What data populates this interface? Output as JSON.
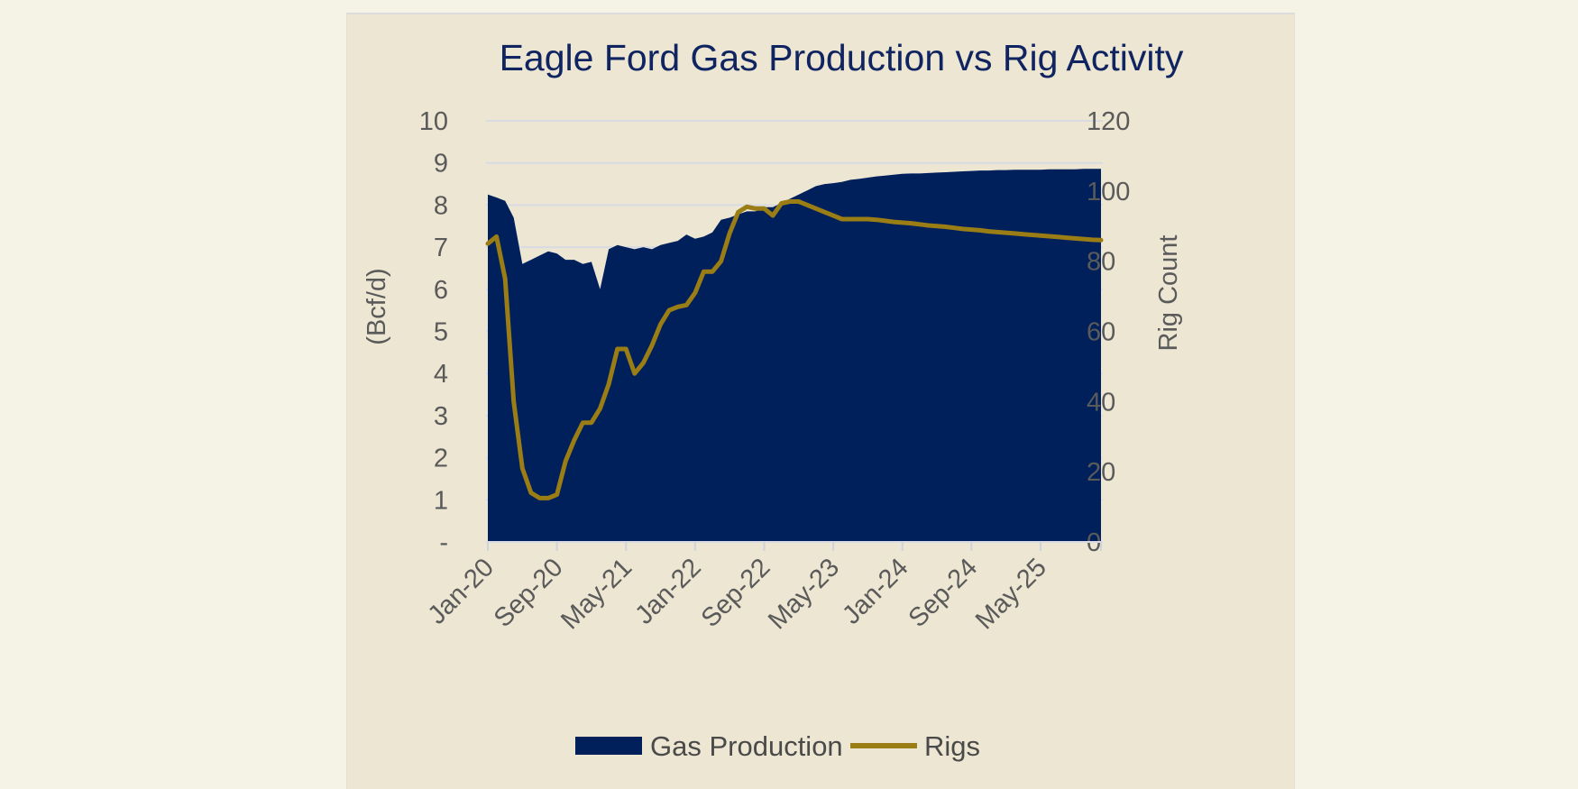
{
  "chart_data": {
    "type": "area",
    "title": "Eagle Ford Gas Production vs Rig Activity",
    "x_labels": [
      "Jan-20",
      "Sep-20",
      "May-21",
      "Jan-22",
      "Sep-22",
      "May-23",
      "Jan-24",
      "Sep-24",
      "May-25"
    ],
    "y_left": {
      "label": "(Bcf/d)",
      "ylim": [
        0,
        10
      ],
      "ticks": [
        "-",
        "1",
        "2",
        "3",
        "4",
        "5",
        "6",
        "7",
        "8",
        "9",
        "10"
      ]
    },
    "y_right": {
      "label": "Rig Count",
      "ylim": [
        0,
        120
      ],
      "ticks": [
        "0",
        "20",
        "40",
        "60",
        "80",
        "100",
        "120"
      ]
    },
    "gridlines": true,
    "legend_position": "bottom",
    "series": [
      {
        "name": "Gas Production",
        "type": "area",
        "axis": "left",
        "color": "#00205b",
        "x": [
          "2020-01",
          "2020-02",
          "2020-03",
          "2020-04",
          "2020-05",
          "2020-06",
          "2020-07",
          "2020-08",
          "2020-09",
          "2020-10",
          "2020-11",
          "2020-12",
          "2021-01",
          "2021-02",
          "2021-03",
          "2021-04",
          "2021-05",
          "2021-06",
          "2021-07",
          "2021-08",
          "2021-09",
          "2021-10",
          "2021-11",
          "2021-12",
          "2022-01",
          "2022-02",
          "2022-03",
          "2022-04",
          "2022-05",
          "2022-06",
          "2022-07",
          "2022-08",
          "2022-09",
          "2022-10",
          "2022-11",
          "2022-12",
          "2023-01",
          "2023-02",
          "2023-03",
          "2023-04",
          "2023-05",
          "2023-06",
          "2023-07",
          "2023-08",
          "2023-09",
          "2023-10",
          "2023-11",
          "2023-12",
          "2024-01",
          "2024-02",
          "2024-03",
          "2024-04",
          "2024-05",
          "2024-06",
          "2024-07",
          "2024-08",
          "2024-09",
          "2024-10",
          "2024-11",
          "2024-12",
          "2025-01",
          "2025-02",
          "2025-03",
          "2025-04",
          "2025-05",
          "2025-06",
          "2025-07",
          "2025-08",
          "2025-09",
          "2025-10",
          "2025-11",
          "2025-12"
        ],
        "values": [
          8.25,
          8.18,
          8.1,
          7.7,
          6.6,
          6.7,
          6.8,
          6.9,
          6.85,
          6.7,
          6.7,
          6.6,
          6.65,
          6.0,
          6.95,
          7.05,
          7.0,
          6.95,
          7.0,
          6.95,
          7.05,
          7.1,
          7.15,
          7.3,
          7.2,
          7.25,
          7.35,
          7.65,
          7.7,
          7.78,
          7.85,
          7.85,
          7.95,
          7.95,
          8.05,
          8.15,
          8.25,
          8.35,
          8.45,
          8.5,
          8.52,
          8.55,
          8.6,
          8.62,
          8.65,
          8.68,
          8.7,
          8.72,
          8.74,
          8.75,
          8.75,
          8.76,
          8.77,
          8.78,
          8.79,
          8.8,
          8.81,
          8.82,
          8.82,
          8.83,
          8.83,
          8.84,
          8.84,
          8.84,
          8.84,
          8.85,
          8.85,
          8.85,
          8.85,
          8.86,
          8.86,
          8.86
        ]
      },
      {
        "name": "Rigs",
        "type": "line",
        "axis": "right",
        "color": "#9a7d14",
        "x": [
          "2020-01",
          "2020-02",
          "2020-03",
          "2020-04",
          "2020-05",
          "2020-06",
          "2020-07",
          "2020-08",
          "2020-09",
          "2020-10",
          "2020-11",
          "2020-12",
          "2021-01",
          "2021-02",
          "2021-03",
          "2021-04",
          "2021-05",
          "2021-06",
          "2021-07",
          "2021-08",
          "2021-09",
          "2021-10",
          "2021-11",
          "2021-12",
          "2022-01",
          "2022-02",
          "2022-03",
          "2022-04",
          "2022-05",
          "2022-06",
          "2022-07",
          "2022-08",
          "2022-09",
          "2022-10",
          "2022-11",
          "2022-12",
          "2023-01",
          "2023-02",
          "2023-03",
          "2023-04",
          "2023-05",
          "2023-06",
          "2023-07",
          "2023-08",
          "2023-09",
          "2023-10",
          "2023-11",
          "2023-12",
          "2024-01",
          "2024-02",
          "2024-03",
          "2024-04",
          "2024-05",
          "2024-06",
          "2024-07",
          "2024-08",
          "2024-09",
          "2024-10",
          "2024-11",
          "2024-12",
          "2025-01",
          "2025-02",
          "2025-03",
          "2025-04",
          "2025-05",
          "2025-06",
          "2025-07",
          "2025-08",
          "2025-09",
          "2025-10",
          "2025-11",
          "2025-12"
        ],
        "values": [
          85,
          87,
          75,
          40,
          21,
          14,
          12.5,
          12.5,
          13.5,
          23,
          29,
          34,
          34,
          38,
          45,
          55,
          55,
          48,
          51,
          56,
          62,
          66,
          67,
          67.5,
          71,
          77,
          77,
          80,
          88,
          94,
          95.5,
          95,
          95,
          93,
          96.5,
          97,
          97,
          96,
          95,
          94,
          93,
          92,
          92,
          92,
          92,
          91.8,
          91.5,
          91.2,
          91,
          90.8,
          90.5,
          90.2,
          90,
          89.8,
          89.5,
          89.2,
          89,
          88.8,
          88.5,
          88.3,
          88.1,
          87.9,
          87.7,
          87.5,
          87.3,
          87.1,
          86.9,
          86.7,
          86.5,
          86.3,
          86.1,
          86
        ]
      }
    ]
  }
}
